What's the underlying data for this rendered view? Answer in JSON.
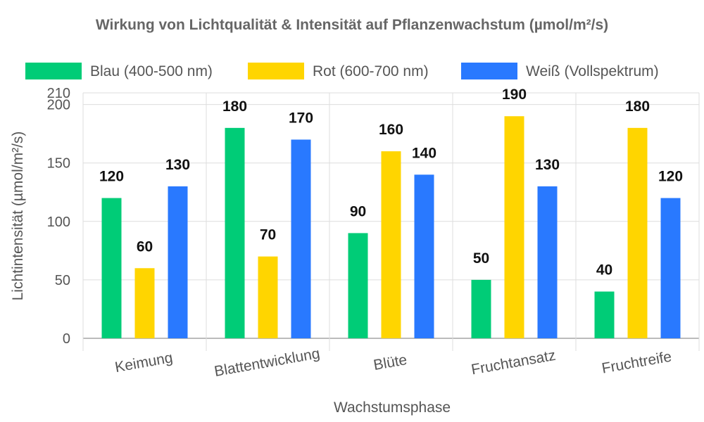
{
  "chart_data": {
    "type": "bar",
    "title": "Wirkung von Lichtqualität & Intensität auf Pflanzenwachstum (µmol/m²/s)",
    "xlabel": "Wachstumsphase",
    "ylabel": "Lichtintensität (µmol/m²/s)",
    "categories": [
      "Keimung",
      "Blattentwicklung",
      "Blüte",
      "Fruchtansatz",
      "Fruchtreife"
    ],
    "series": [
      {
        "name": "Blau (400-500 nm)",
        "color": "#00cc77",
        "values": [
          120,
          180,
          90,
          50,
          40
        ]
      },
      {
        "name": "Rot (600-700 nm)",
        "color": "#ffd500",
        "values": [
          60,
          70,
          160,
          190,
          180
        ]
      },
      {
        "name": "Weiß (Vollspektrum)",
        "color": "#2979ff",
        "values": [
          130,
          170,
          140,
          130,
          120
        ]
      }
    ],
    "ylim": [
      0,
      210
    ],
    "yticks": [
      0,
      50,
      100,
      150,
      200,
      210
    ],
    "grid": true,
    "legend": "top",
    "data_labels": true
  }
}
